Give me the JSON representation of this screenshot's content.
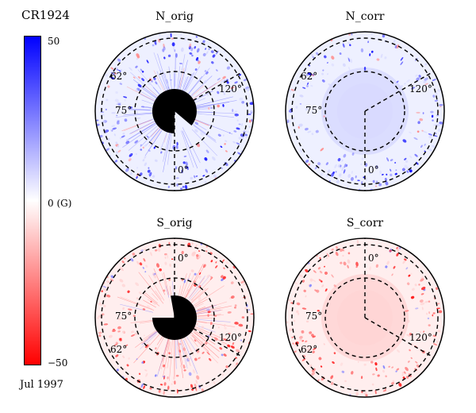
{
  "title": "CR1924",
  "date": "Jul 1997",
  "colorbar": {
    "max_label": "50",
    "mid_label": "0 (G)",
    "min_label": "−50",
    "colors": {
      "max": "#0000ff",
      "mid": "#ffffff",
      "min": "#ff0000"
    }
  },
  "panels": [
    {
      "id": "n-orig",
      "title": "N_orig",
      "hemisphere": "north",
      "polar_gap": true,
      "tint": "blue",
      "labels": {
        "lat_outer": "62°",
        "lat_inner": "75°",
        "lon_a": "120°",
        "lon_b": "0°"
      }
    },
    {
      "id": "n-corr",
      "title": "N_corr",
      "hemisphere": "north",
      "polar_gap": false,
      "tint": "blue",
      "labels": {
        "lat_outer": "62°",
        "lat_inner": "75°",
        "lon_a": "120°",
        "lon_b": "0°"
      }
    },
    {
      "id": "s-orig",
      "title": "S_orig",
      "hemisphere": "south",
      "polar_gap": true,
      "tint": "red",
      "labels": {
        "lat_outer": "62°",
        "lat_inner": "75°",
        "lon_a": "120°",
        "lon_b": "0°"
      }
    },
    {
      "id": "s-corr",
      "title": "S_corr",
      "hemisphere": "south",
      "polar_gap": false,
      "tint": "red",
      "labels": {
        "lat_outer": "62°",
        "lat_inner": "75°",
        "lon_a": "120°",
        "lon_b": "0°"
      }
    }
  ]
}
